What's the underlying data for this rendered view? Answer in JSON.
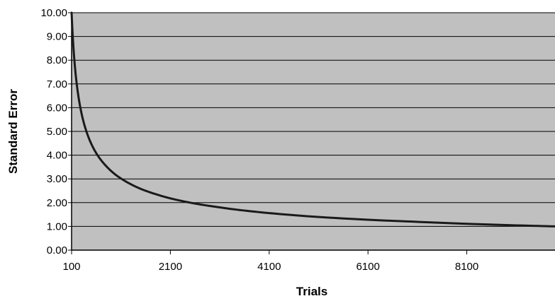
{
  "chart_data": {
    "type": "line",
    "title": "",
    "xlabel": "Trials",
    "ylabel": "Standard Error",
    "xlim": [
      100,
      9900
    ],
    "ylim": [
      0,
      10
    ],
    "x_ticks": [
      100,
      2100,
      4100,
      6100,
      8100
    ],
    "x_tick_labels": [
      "100",
      "2100",
      "4100",
      "6100",
      "8100"
    ],
    "y_ticks": [
      0,
      1,
      2,
      3,
      4,
      5,
      6,
      7,
      8,
      9,
      10
    ],
    "y_tick_labels": [
      "0.00",
      "1.00",
      "2.00",
      "3.00",
      "4.00",
      "5.00",
      "6.00",
      "7.00",
      "8.00",
      "9.00",
      "10.00"
    ],
    "grid": "horizontal",
    "legend": "none",
    "colors": {
      "plot_background": "#c0c0c0",
      "gridline": "#000000",
      "line": "#1a1a1a"
    },
    "series": [
      {
        "x": [
          100,
          150,
          200,
          300,
          400,
          600,
          800,
          1000,
          1200,
          1500,
          1800,
          2100,
          2500,
          3000,
          3500,
          4100,
          5000,
          6100,
          7000,
          8100,
          9000,
          9900
        ],
        "values": [
          10.0,
          8.17,
          7.07,
          5.77,
          5.0,
          4.08,
          3.54,
          3.16,
          2.89,
          2.58,
          2.36,
          2.18,
          2.0,
          1.83,
          1.69,
          1.56,
          1.41,
          1.28,
          1.2,
          1.11,
          1.05,
          1.0
        ]
      }
    ]
  }
}
